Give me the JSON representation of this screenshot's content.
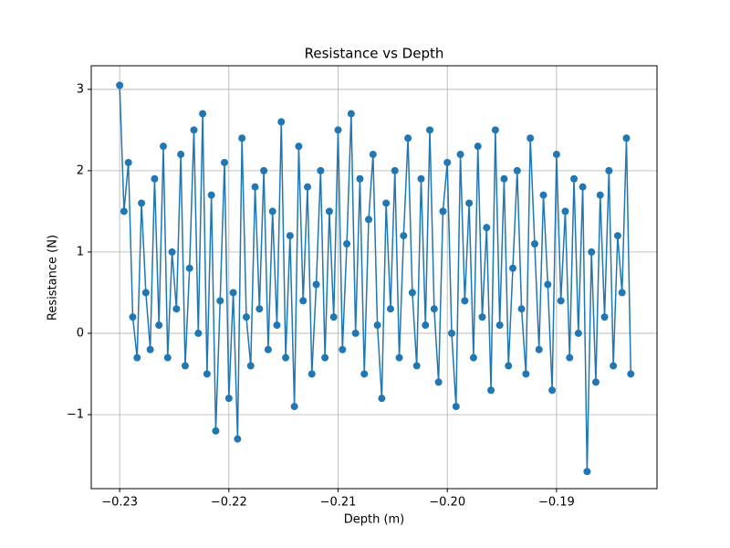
{
  "chart_data": {
    "type": "line",
    "title": "Resistance vs Depth",
    "x_label": "Depth (m)",
    "y_label": "Resistance (N)",
    "x": [
      -0.23,
      -0.2296,
      -0.2292,
      -0.2288,
      -0.2284,
      -0.228,
      -0.2276,
      -0.2272,
      -0.2268,
      -0.2264,
      -0.226,
      -0.2256,
      -0.2252,
      -0.2248,
      -0.2244,
      -0.224,
      -0.2236,
      -0.2232,
      -0.2228,
      -0.2224,
      -0.222,
      -0.2216,
      -0.2212,
      -0.2208,
      -0.2204,
      -0.22,
      -0.2196,
      -0.2192,
      -0.2188,
      -0.2184,
      -0.218,
      -0.2176,
      -0.2172,
      -0.2168,
      -0.2164,
      -0.216,
      -0.2156,
      -0.2152,
      -0.2148,
      -0.2144,
      -0.214,
      -0.2136,
      -0.2132,
      -0.2128,
      -0.2124,
      -0.212,
      -0.2116,
      -0.2112,
      -0.2108,
      -0.2104,
      -0.21,
      -0.2096,
      -0.2092,
      -0.2088,
      -0.2084,
      -0.208,
      -0.2076,
      -0.2072,
      -0.2068,
      -0.2064,
      -0.206,
      -0.2056,
      -0.2052,
      -0.2048,
      -0.2044,
      -0.204,
      -0.2036,
      -0.2032,
      -0.2028,
      -0.2024,
      -0.202,
      -0.2016,
      -0.2012,
      -0.2008,
      -0.2004,
      -0.2,
      -0.1996,
      -0.1992,
      -0.1988,
      -0.1984,
      -0.198,
      -0.1976,
      -0.1972,
      -0.1968,
      -0.1964,
      -0.196,
      -0.1956,
      -0.1952,
      -0.1948,
      -0.1944,
      -0.194,
      -0.1936,
      -0.1932,
      -0.1928,
      -0.1924,
      -0.192,
      -0.1916,
      -0.1912,
      -0.1908,
      -0.1904,
      -0.19,
      -0.1896,
      -0.1892,
      -0.1888,
      -0.1884,
      -0.188,
      -0.1876,
      -0.1872,
      -0.1868,
      -0.1864,
      -0.186,
      -0.1856,
      -0.1852,
      -0.1848,
      -0.1844,
      -0.184,
      -0.1836,
      -0.1832
    ],
    "series": [
      {
        "color": "#1f77b4",
        "values": [
          3.05,
          1.5,
          2.1,
          0.2,
          -0.3,
          1.6,
          0.5,
          -0.2,
          1.9,
          0.1,
          2.3,
          -0.3,
          1.0,
          0.3,
          2.2,
          -0.4,
          0.8,
          2.5,
          0.0,
          2.7,
          -0.5,
          1.7,
          -1.2,
          0.4,
          2.1,
          -0.8,
          0.5,
          -1.3,
          2.4,
          0.2,
          -0.4,
          1.8,
          0.3,
          2.0,
          -0.2,
          1.5,
          0.1,
          2.6,
          -0.3,
          1.2,
          -0.9,
          2.3,
          0.4,
          1.8,
          -0.5,
          0.6,
          2.0,
          -0.3,
          1.5,
          0.2,
          2.5,
          -0.2,
          1.1,
          2.7,
          0.0,
          1.9,
          -0.5,
          1.4,
          2.2,
          0.1,
          -0.8,
          1.6,
          0.3,
          2.0,
          -0.3,
          1.2,
          2.4,
          0.5,
          -0.4,
          1.9,
          0.1,
          2.5,
          0.3,
          -0.6,
          1.5,
          2.1,
          0.0,
          -0.9,
          2.2,
          0.4,
          1.6,
          -0.3,
          2.3,
          0.2,
          1.3,
          -0.7,
          2.5,
          0.1,
          1.9,
          -0.4,
          0.8,
          2.0,
          0.3,
          -0.5,
          2.4,
          1.1,
          -0.2,
          1.7,
          0.6,
          -0.7,
          2.2,
          0.4,
          1.5,
          -0.3,
          1.9,
          0.0,
          1.8,
          -1.7,
          1.0,
          -0.6,
          1.7,
          0.2,
          2.0,
          -0.4,
          1.2,
          0.5,
          2.4,
          -0.5
        ]
      }
    ],
    "xlim": [
      -0.2326,
      -0.1808
    ],
    "ylim": [
      -1.91,
      3.29
    ],
    "xticks": [
      {
        "value": -0.23,
        "label": "−0.23"
      },
      {
        "value": -0.22,
        "label": "−0.22"
      },
      {
        "value": -0.21,
        "label": "−0.21"
      },
      {
        "value": -0.2,
        "label": "−0.20"
      },
      {
        "value": -0.19,
        "label": "−0.19"
      }
    ],
    "yticks": [
      {
        "value": -1,
        "label": "−1"
      },
      0,
      1,
      2,
      3
    ],
    "grid": true,
    "markers": true
  }
}
